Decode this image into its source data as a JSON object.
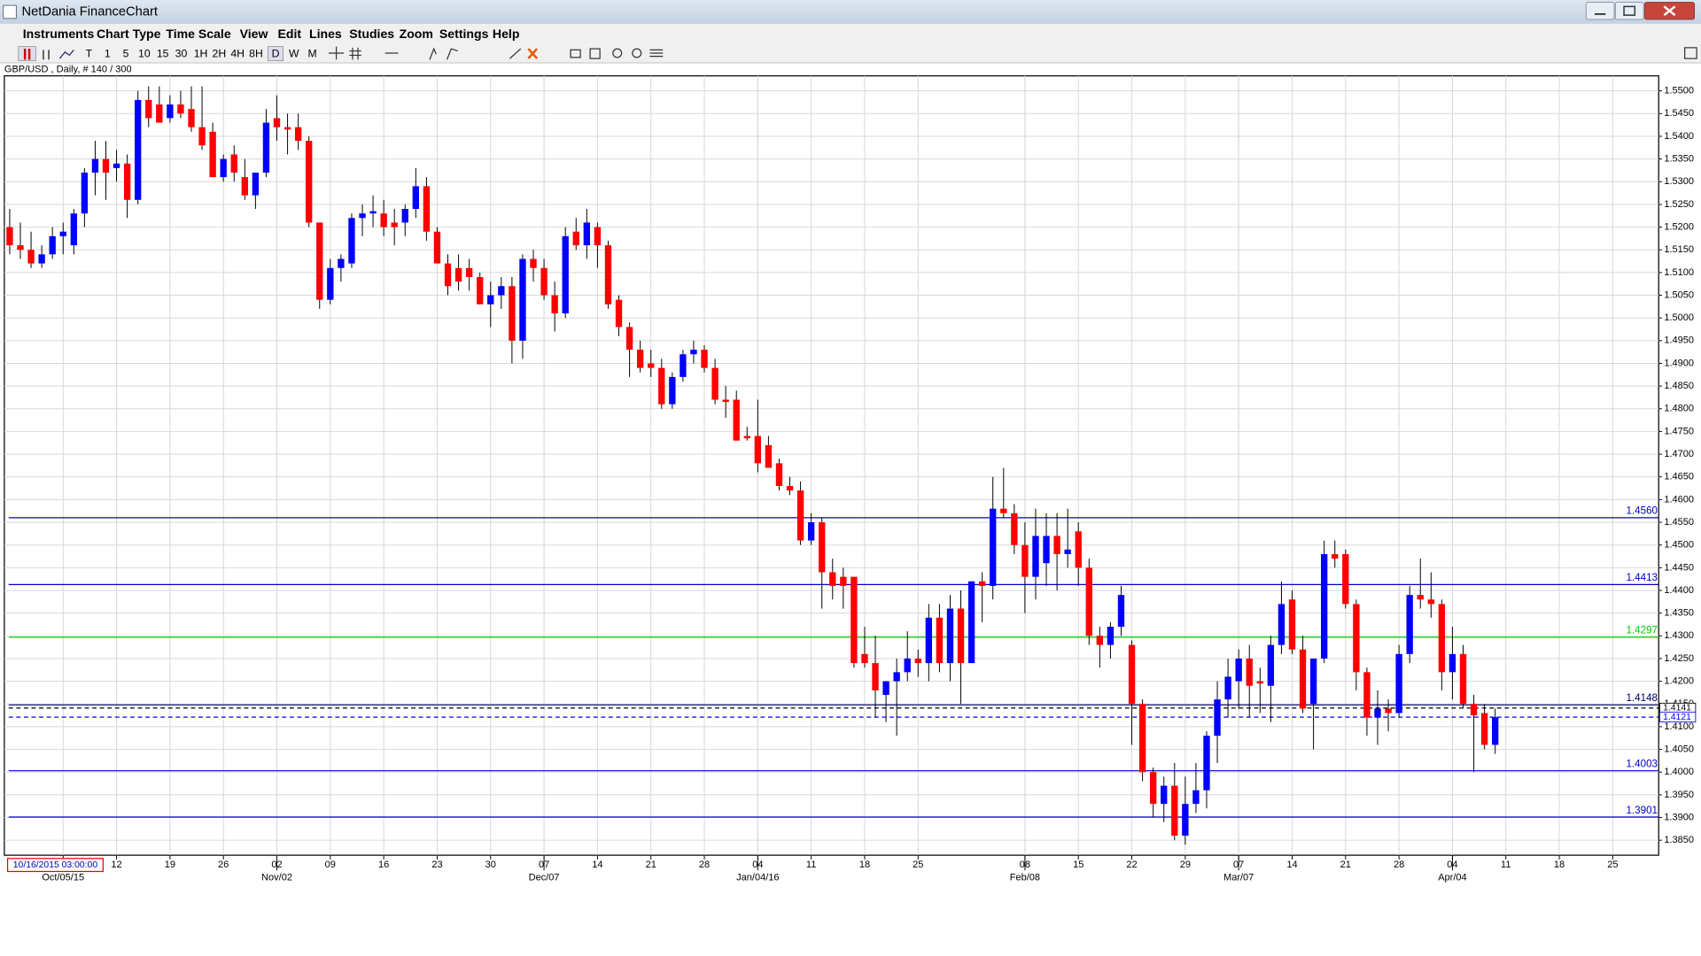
{
  "window": {
    "title": "NetDania FinanceChart"
  },
  "menu": [
    "Instruments",
    "Chart Type",
    "Time Scale",
    "View",
    "Edit",
    "Lines",
    "Studies",
    "Zoom",
    "Settings",
    "Help"
  ],
  "toolbar": {
    "timeframes": [
      "T",
      "1",
      "5",
      "10",
      "15",
      "30",
      "1H",
      "2H",
      "4H",
      "8H",
      "D",
      "W",
      "M"
    ]
  },
  "chart_data": {
    "type": "candlestick",
    "title": "GBP/USD , Daily, # 140 / 300",
    "crosshair_label": "10/16/2015 03:00:00",
    "up_color": "#0000ff",
    "down_color": "#ff0000",
    "grid": true,
    "xlim": [
      -0.5,
      154.3
    ],
    "ylim": [
      1.3817,
      1.5533
    ],
    "xticks": [
      {
        "value": 10,
        "label": "12"
      },
      {
        "value": 15,
        "label": "19"
      },
      {
        "value": 20,
        "label": "26"
      },
      {
        "value": 25,
        "label": "02"
      },
      {
        "value": 30,
        "label": "09"
      },
      {
        "value": 35,
        "label": "16"
      },
      {
        "value": 40,
        "label": "23"
      },
      {
        "value": 45,
        "label": "30"
      },
      {
        "value": 50,
        "label": "07"
      },
      {
        "value": 55,
        "label": "14"
      },
      {
        "value": 60,
        "label": "21"
      },
      {
        "value": 65,
        "label": "28"
      },
      {
        "value": 70,
        "label": "04"
      },
      {
        "value": 75,
        "label": "11"
      },
      {
        "value": 80,
        "label": "18"
      },
      {
        "value": 85,
        "label": "25"
      },
      {
        "value": 95,
        "label": "08"
      },
      {
        "value": 100,
        "label": "15"
      },
      {
        "value": 105,
        "label": "22"
      },
      {
        "value": 110,
        "label": "29"
      },
      {
        "value": 115,
        "label": "07"
      },
      {
        "value": 120,
        "label": "14"
      },
      {
        "value": 125,
        "label": "21"
      },
      {
        "value": 130,
        "label": "28"
      },
      {
        "value": 135,
        "label": "04"
      },
      {
        "value": 140,
        "label": "11"
      },
      {
        "value": 145,
        "label": "18"
      },
      {
        "value": 150,
        "label": "25"
      }
    ],
    "xticks_major": [
      {
        "value": 5,
        "label": "Oct/05/15"
      },
      {
        "value": 25,
        "label": "Nov/02"
      },
      {
        "value": 50,
        "label": "Dec/07"
      },
      {
        "value": 70,
        "label": "Jan/04/16"
      },
      {
        "value": 95,
        "label": "Feb/08"
      },
      {
        "value": 115,
        "label": "Mar/07"
      },
      {
        "value": 135,
        "label": "Apr/04"
      }
    ],
    "yticks": [
      {
        "value": 1.385,
        "label": "1.3850"
      },
      {
        "value": 1.39,
        "label": "1.3900"
      },
      {
        "value": 1.395,
        "label": "1.3950"
      },
      {
        "value": 1.4,
        "label": "1.4000"
      },
      {
        "value": 1.405,
        "label": "1.4050"
      },
      {
        "value": 1.41,
        "label": "1.4100"
      },
      {
        "value": 1.415,
        "label": "1.4150"
      },
      {
        "value": 1.42,
        "label": "1.4200"
      },
      {
        "value": 1.425,
        "label": "1.4250"
      },
      {
        "value": 1.43,
        "label": "1.4300"
      },
      {
        "value": 1.435,
        "label": "1.4350"
      },
      {
        "value": 1.44,
        "label": "1.4400"
      },
      {
        "value": 1.445,
        "label": "1.4450"
      },
      {
        "value": 1.45,
        "label": "1.4500"
      },
      {
        "value": 1.455,
        "label": "1.4550"
      },
      {
        "value": 1.46,
        "label": "1.4600"
      },
      {
        "value": 1.465,
        "label": "1.4650"
      },
      {
        "value": 1.47,
        "label": "1.4700"
      },
      {
        "value": 1.475,
        "label": "1.4750"
      },
      {
        "value": 1.48,
        "label": "1.4800"
      },
      {
        "value": 1.485,
        "label": "1.4850"
      },
      {
        "value": 1.49,
        "label": "1.4900"
      },
      {
        "value": 1.495,
        "label": "1.4950"
      },
      {
        "value": 1.5,
        "label": "1.5000"
      },
      {
        "value": 1.505,
        "label": "1.5050"
      },
      {
        "value": 1.51,
        "label": "1.5100"
      },
      {
        "value": 1.515,
        "label": "1.5150"
      },
      {
        "value": 1.52,
        "label": "1.5200"
      },
      {
        "value": 1.525,
        "label": "1.5250"
      },
      {
        "value": 1.53,
        "label": "1.5300"
      },
      {
        "value": 1.535,
        "label": "1.5350"
      },
      {
        "value": 1.54,
        "label": "1.5400"
      },
      {
        "value": 1.545,
        "label": "1.5450"
      },
      {
        "value": 1.55,
        "label": "1.5500"
      }
    ],
    "levels": [
      {
        "value": 1.456,
        "label": "1.4560",
        "color": "#0000cc"
      },
      {
        "value": 1.4413,
        "label": "1.4413",
        "color": "#0000cc"
      },
      {
        "value": 1.4297,
        "label": "1.4297",
        "color": "#00cc00"
      },
      {
        "value": 1.4148,
        "label": "1.4148",
        "color": "#000066"
      },
      {
        "value": 1.4003,
        "label": "1.4003",
        "color": "#0000cc"
      },
      {
        "value": 1.3901,
        "label": "1.3901",
        "color": "#0000cc"
      }
    ],
    "price_markers": [
      {
        "value": 1.4141,
        "label": "1.4141",
        "color": "#000000"
      },
      {
        "value": 1.4121,
        "label": "1.4121",
        "color": "#0000ff"
      }
    ],
    "open": [
      1.52,
      1.516,
      1.515,
      1.512,
      1.514,
      1.518,
      1.516,
      1.523,
      1.532,
      1.535,
      1.533,
      1.534,
      1.526,
      1.548,
      1.547,
      1.544,
      1.547,
      1.546,
      1.542,
      1.541,
      1.531,
      1.536,
      1.531,
      1.527,
      1.532,
      1.544,
      1.542,
      1.542,
      1.539,
      1.521,
      1.504,
      1.511,
      1.512,
      1.522,
      1.523,
      1.523,
      1.521,
      1.521,
      1.524,
      1.529,
      1.519,
      1.512,
      1.511,
      1.511,
      1.509,
      1.503,
      1.505,
      1.507,
      1.495,
      1.513,
      1.511,
      1.505,
      1.501,
      1.519,
      1.516,
      1.52,
      1.516,
      1.504,
      1.498,
      1.493,
      1.49,
      1.489,
      1.481,
      1.487,
      1.492,
      1.493,
      1.489,
      1.482,
      1.482,
      1.474,
      1.474,
      1.472,
      1.468,
      1.463,
      1.462,
      1.451,
      1.455,
      1.444,
      1.443,
      1.443,
      1.426,
      1.424,
      1.417,
      1.42,
      1.422,
      1.425,
      1.424,
      1.434,
      1.424,
      1.436,
      1.424,
      1.442,
      1.441,
      1.458,
      1.457,
      1.45,
      1.443,
      1.446,
      1.452,
      1.448,
      1.453,
      1.445,
      1.43,
      1.428,
      1.432,
      1.428,
      1.415,
      1.4,
      1.393,
      1.397,
      1.386,
      1.393,
      1.396,
      1.408,
      1.416,
      1.42,
      1.425,
      1.42,
      1.419,
      1.428,
      1.438,
      1.427,
      1.415,
      1.425,
      1.448,
      1.448,
      1.437,
      1.422,
      1.412,
      1.414,
      1.413,
      1.426,
      1.439,
      1.438,
      1.437,
      1.422,
      1.426,
      1.415,
      1.413,
      1.406
    ],
    "high": [
      1.524,
      1.521,
      1.519,
      1.516,
      1.52,
      1.521,
      1.524,
      1.533,
      1.539,
      1.539,
      1.537,
      1.536,
      1.55,
      1.551,
      1.551,
      1.549,
      1.55,
      1.551,
      1.551,
      1.543,
      1.536,
      1.538,
      1.535,
      1.532,
      1.546,
      1.549,
      1.545,
      1.545,
      1.54,
      1.521,
      1.513,
      1.514,
      1.523,
      1.525,
      1.527,
      1.526,
      1.524,
      1.525,
      1.533,
      1.531,
      1.52,
      1.514,
      1.514,
      1.513,
      1.51,
      1.508,
      1.509,
      1.509,
      1.514,
      1.515,
      1.513,
      1.508,
      1.52,
      1.522,
      1.524,
      1.521,
      1.517,
      1.505,
      1.499,
      1.495,
      1.493,
      1.491,
      1.488,
      1.493,
      1.495,
      1.494,
      1.491,
      1.485,
      1.484,
      1.476,
      1.482,
      1.474,
      1.469,
      1.465,
      1.464,
      1.457,
      1.456,
      1.447,
      1.445,
      1.443,
      1.432,
      1.43,
      1.42,
      1.425,
      1.431,
      1.427,
      1.437,
      1.437,
      1.439,
      1.44,
      1.442,
      1.444,
      1.465,
      1.467,
      1.459,
      1.455,
      1.458,
      1.457,
      1.457,
      1.458,
      1.455,
      1.447,
      1.432,
      1.433,
      1.441,
      1.429,
      1.416,
      1.401,
      1.399,
      1.402,
      1.399,
      1.402,
      1.409,
      1.42,
      1.425,
      1.427,
      1.428,
      1.423,
      1.43,
      1.442,
      1.44,
      1.43,
      1.425,
      1.451,
      1.451,
      1.449,
      1.438,
      1.423,
      1.418,
      1.416,
      1.428,
      1.441,
      1.447,
      1.444,
      1.438,
      1.432,
      1.428,
      1.417,
      1.415,
      1.414
    ],
    "low": [
      1.514,
      1.513,
      1.511,
      1.511,
      1.513,
      1.514,
      1.514,
      1.52,
      1.527,
      1.526,
      1.53,
      1.522,
      1.525,
      1.542,
      1.543,
      1.543,
      1.544,
      1.541,
      1.537,
      1.531,
      1.53,
      1.53,
      1.526,
      1.524,
      1.531,
      1.539,
      1.536,
      1.537,
      1.52,
      1.502,
      1.503,
      1.508,
      1.511,
      1.518,
      1.52,
      1.518,
      1.516,
      1.518,
      1.522,
      1.517,
      1.512,
      1.505,
      1.506,
      1.506,
      1.503,
      1.498,
      1.502,
      1.49,
      1.491,
      1.508,
      1.504,
      1.497,
      1.5,
      1.515,
      1.513,
      1.511,
      1.502,
      1.496,
      1.487,
      1.488,
      1.487,
      1.48,
      1.48,
      1.486,
      1.49,
      1.488,
      1.481,
      1.478,
      1.473,
      1.473,
      1.466,
      1.467,
      1.462,
      1.461,
      1.45,
      1.45,
      1.436,
      1.438,
      1.436,
      1.423,
      1.423,
      1.412,
      1.411,
      1.408,
      1.42,
      1.421,
      1.42,
      1.422,
      1.42,
      1.415,
      1.424,
      1.433,
      1.438,
      1.456,
      1.448,
      1.435,
      1.438,
      1.441,
      1.44,
      1.445,
      1.441,
      1.428,
      1.423,
      1.425,
      1.43,
      1.406,
      1.398,
      1.39,
      1.389,
      1.385,
      1.384,
      1.391,
      1.392,
      1.402,
      1.412,
      1.414,
      1.412,
      1.413,
      1.411,
      1.426,
      1.426,
      1.413,
      1.405,
      1.424,
      1.445,
      1.436,
      1.418,
      1.408,
      1.406,
      1.409,
      1.412,
      1.424,
      1.436,
      1.434,
      1.418,
      1.416,
      1.414,
      1.4,
      1.405,
      1.404
    ],
    "close": [
      1.516,
      1.515,
      1.512,
      1.514,
      1.518,
      1.519,
      1.523,
      1.532,
      1.535,
      1.532,
      1.534,
      1.526,
      1.548,
      1.544,
      1.543,
      1.547,
      1.545,
      1.542,
      1.538,
      1.531,
      1.535,
      1.532,
      1.527,
      1.532,
      1.543,
      1.542,
      1.5415,
      1.539,
      1.521,
      1.504,
      1.511,
      1.513,
      1.522,
      1.523,
      1.5235,
      1.52,
      1.52,
      1.524,
      1.529,
      1.519,
      1.512,
      1.507,
      1.508,
      1.509,
      1.503,
      1.505,
      1.507,
      1.495,
      1.513,
      1.511,
      1.505,
      1.501,
      1.518,
      1.516,
      1.521,
      1.516,
      1.503,
      1.498,
      1.493,
      1.489,
      1.489,
      1.481,
      1.487,
      1.492,
      1.493,
      1.489,
      1.482,
      1.4815,
      1.473,
      1.4735,
      1.468,
      1.467,
      1.463,
      1.462,
      1.451,
      1.455,
      1.444,
      1.441,
      1.441,
      1.424,
      1.424,
      1.418,
      1.42,
      1.422,
      1.425,
      1.424,
      1.434,
      1.424,
      1.436,
      1.424,
      1.442,
      1.441,
      1.458,
      1.457,
      1.45,
      1.443,
      1.452,
      1.452,
      1.448,
      1.449,
      1.445,
      1.43,
      1.428,
      1.432,
      1.439,
      1.415,
      1.4,
      1.393,
      1.397,
      1.386,
      1.393,
      1.396,
      1.408,
      1.416,
      1.421,
      1.425,
      1.419,
      1.4195,
      1.428,
      1.437,
      1.427,
      1.414,
      1.425,
      1.448,
      1.447,
      1.437,
      1.422,
      1.412,
      1.414,
      1.413,
      1.426,
      1.439,
      1.438,
      1.437,
      1.422,
      1.426,
      1.415,
      1.4125,
      1.406,
      1.4121
    ]
  }
}
